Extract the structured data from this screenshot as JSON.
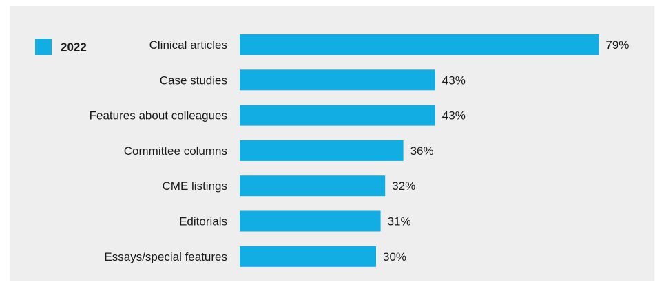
{
  "chart_data": {
    "type": "bar",
    "orientation": "horizontal",
    "categories": [
      "Clinical articles",
      "Case studies",
      "Features about colleagues",
      "Committee columns",
      "CME listings",
      "Editorials",
      "Essays/special features"
    ],
    "series": [
      {
        "name": "2022",
        "values": [
          79,
          43,
          43,
          36,
          32,
          31,
          30
        ],
        "color": "#12ade3"
      }
    ],
    "value_labels": [
      "79%",
      "43%",
      "43%",
      "36%",
      "32%",
      "31%",
      "30%"
    ],
    "xlim": [
      0,
      100
    ],
    "grid": false,
    "legend": "top-left",
    "title": "",
    "xlabel": "",
    "ylabel": ""
  },
  "colors": {
    "bar": "#12ade3",
    "panel_background": "#eeeeee",
    "text": "#1a1a1a"
  }
}
